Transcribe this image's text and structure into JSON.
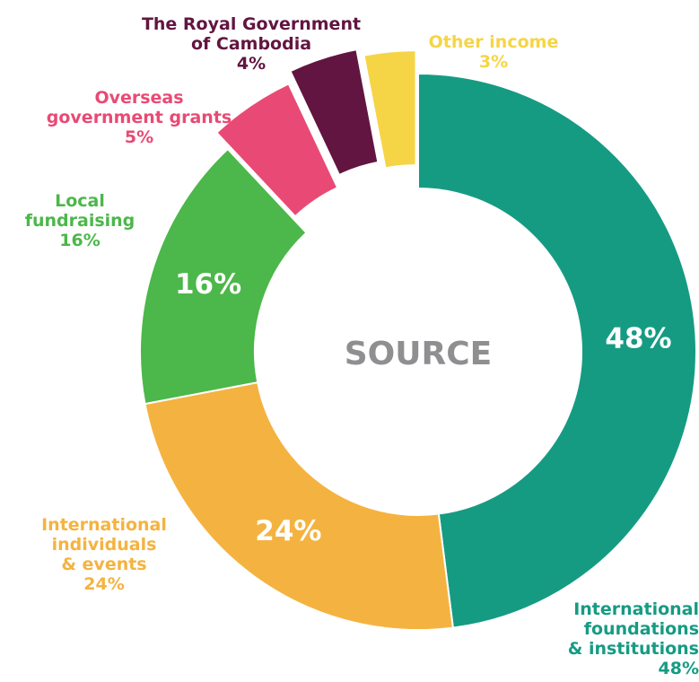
{
  "chart_data": {
    "type": "pie",
    "title": "SOURCE",
    "colors": {
      "International foundations & institutions": "#169b83",
      "International individuals & events": "#f4b340",
      "Local fundraising": "#4cb74a",
      "Overseas government grants": "#e94a75",
      "The Royal Government of Cambodia": "#621540",
      "Other income": "#f5d546"
    },
    "slices": [
      {
        "label": "International foundations & institutions",
        "lines": [
          "International",
          "foundations",
          "& institutions"
        ],
        "value": 48,
        "value_text": "48%",
        "inner_text": "48%"
      },
      {
        "label": "International individuals & events",
        "lines": [
          "International",
          "individuals",
          "& events"
        ],
        "value": 24,
        "value_text": "24%",
        "inner_text": "24%"
      },
      {
        "label": "Local fundraising",
        "lines": [
          "Local",
          "fundraising"
        ],
        "value": 16,
        "value_text": "16%",
        "inner_text": "16%"
      },
      {
        "label": "Overseas government grants",
        "lines": [
          "Overseas",
          "government grants"
        ],
        "value": 5,
        "value_text": "5%",
        "inner_text": ""
      },
      {
        "label": "The Royal Government of Cambodia",
        "lines": [
          "The Royal Government",
          "of Cambodia"
        ],
        "value": 4,
        "value_text": "4%",
        "inner_text": ""
      },
      {
        "label": "Other income",
        "lines": [
          "Other income"
        ],
        "value": 3,
        "value_text": "3%",
        "inner_text": ""
      }
    ]
  }
}
